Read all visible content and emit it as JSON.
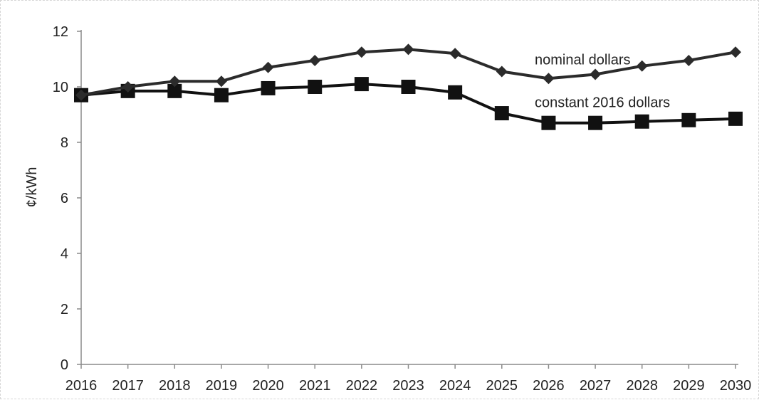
{
  "chart_data": {
    "type": "line",
    "x": [
      2016,
      2017,
      2018,
      2019,
      2020,
      2021,
      2022,
      2023,
      2024,
      2025,
      2026,
      2027,
      2028,
      2029,
      2030
    ],
    "ylabel": "¢/kWh",
    "ylim": [
      0,
      12
    ],
    "yticks": [
      0,
      2,
      4,
      6,
      8,
      10,
      12
    ],
    "grid": false,
    "series": [
      {
        "name": "nominal dollars",
        "marker": "diamond",
        "color": "#2b2b2b",
        "values": [
          9.7,
          10.0,
          10.2,
          10.2,
          10.7,
          10.95,
          11.25,
          11.35,
          11.2,
          10.55,
          10.3,
          10.45,
          10.75,
          10.95,
          11.25
        ]
      },
      {
        "name": "constant 2016 dollars",
        "marker": "square",
        "color": "#111111",
        "values": [
          9.7,
          9.85,
          9.85,
          9.7,
          9.95,
          10.0,
          10.1,
          10.0,
          9.8,
          9.05,
          8.7,
          8.7,
          8.75,
          8.8,
          8.85
        ]
      }
    ]
  }
}
